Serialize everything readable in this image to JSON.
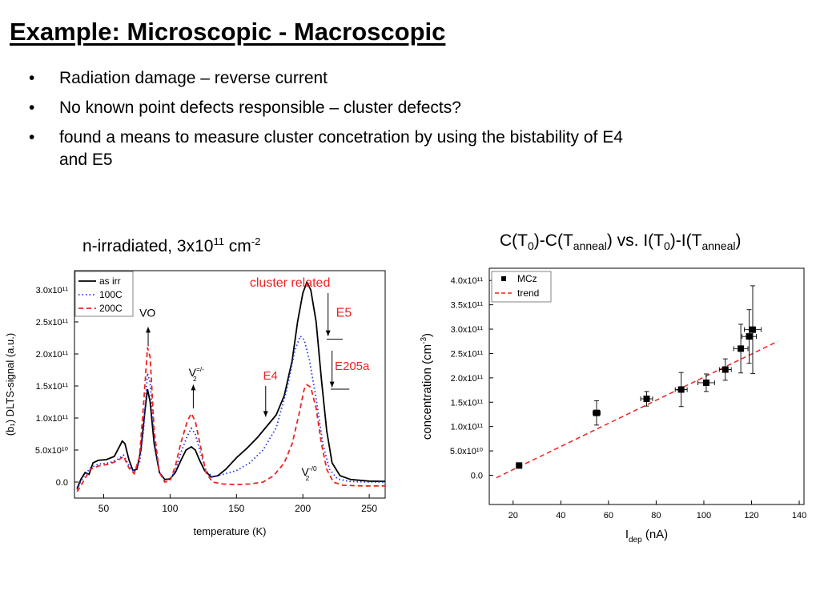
{
  "slide": {
    "title": "Example: Microscopic - Macroscopic",
    "bullet_symbol": "•",
    "bullets": [
      "Radiation damage – reverse current",
      "No known point defects responsible – cluster defects?",
      "found a means to measure cluster concetration by using the bistability of E4 and E5"
    ],
    "left_caption": {
      "text": "n-irradiated, 3x10",
      "sup1": "11",
      "mid": " cm",
      "sup2": "-2"
    },
    "right_caption": {
      "p1": "C(T",
      "s1": "0",
      "p2": ")-C(T",
      "s2": "anneal",
      "p3": ") vs. I(T",
      "s3": "0",
      "p4": ")-I(T",
      "s4": "anneal",
      "p5": ")"
    }
  },
  "chart_data": [
    {
      "type": "line",
      "title": "",
      "xlabel": "temperature (K)",
      "ylabel": "(b₁) DLTS-signal (a.u.)",
      "xlim": [
        28,
        262
      ],
      "ylim": [
        -25000000000.0,
        330000000000.0
      ],
      "xticks": [
        50,
        100,
        150,
        200,
        250
      ],
      "xtick_labels": [
        "50",
        "100",
        "150",
        "200",
        "250"
      ],
      "yticks": [
        0,
        50000000000.0,
        100000000000.0,
        150000000000.0,
        200000000000.0,
        250000000000.0,
        300000000000.0
      ],
      "ytick_labels": [
        "0.0",
        "5.0x10¹⁰",
        "1.0x10¹¹",
        "1.5x10¹¹",
        "2.0x10¹¹",
        "2.5x10¹¹",
        "3.0x10¹¹"
      ],
      "legend_position": "top-left",
      "series": [
        {
          "name": "as irr",
          "color": "#000000",
          "style": "solid",
          "points": [
            [
              30,
              -10000000000.0
            ],
            [
              33,
              5000000000.0
            ],
            [
              36,
              15000000000.0
            ],
            [
              39,
              12000000000.0
            ],
            [
              42,
              30000000000.0
            ],
            [
              46,
              34000000000.0
            ],
            [
              52,
              35000000000.0
            ],
            [
              58,
              40000000000.0
            ],
            [
              62,
              56000000000.0
            ],
            [
              64,
              64000000000.0
            ],
            [
              66,
              60000000000.0
            ],
            [
              69,
              35000000000.0
            ],
            [
              72,
              18000000000.0
            ],
            [
              75,
              20000000000.0
            ],
            [
              78,
              50000000000.0
            ],
            [
              81,
              110000000000.0
            ],
            [
              83,
              145000000000.0
            ],
            [
              85,
              125000000000.0
            ],
            [
              88,
              60000000000.0
            ],
            [
              92,
              15000000000.0
            ],
            [
              96,
              4000000000.0
            ],
            [
              100,
              5000000000.0
            ],
            [
              104,
              15000000000.0
            ],
            [
              108,
              33000000000.0
            ],
            [
              112,
              50000000000.0
            ],
            [
              116,
              55000000000.0
            ],
            [
              119,
              50000000000.0
            ],
            [
              122,
              35000000000.0
            ],
            [
              126,
              18000000000.0
            ],
            [
              131,
              8000000000.0
            ],
            [
              136,
              10000000000.0
            ],
            [
              142,
              20000000000.0
            ],
            [
              150,
              38000000000.0
            ],
            [
              158,
              53000000000.0
            ],
            [
              166,
              70000000000.0
            ],
            [
              174,
              90000000000.0
            ],
            [
              180,
              105000000000.0
            ],
            [
              186,
              135000000000.0
            ],
            [
              192,
              190000000000.0
            ],
            [
              196,
              250000000000.0
            ],
            [
              200,
              295000000000.0
            ],
            [
              203,
              312000000000.0
            ],
            [
              206,
              300000000000.0
            ],
            [
              210,
              250000000000.0
            ],
            [
              214,
              160000000000.0
            ],
            [
              218,
              80000000000.0
            ],
            [
              222,
              30000000000.0
            ],
            [
              228,
              10000000000.0
            ],
            [
              236,
              4000000000.0
            ],
            [
              250,
              1500000000.0
            ],
            [
              262,
              1000000000.0
            ]
          ]
        },
        {
          "name": "100C",
          "color": "#2233ee",
          "style": "dotted",
          "points": [
            [
              30,
              -12000000000.0
            ],
            [
              33,
              2000000000.0
            ],
            [
              36,
              12000000000.0
            ],
            [
              40,
              22000000000.0
            ],
            [
              46,
              28000000000.0
            ],
            [
              54,
              30000000000.0
            ],
            [
              60,
              35000000000.0
            ],
            [
              65,
              42000000000.0
            ],
            [
              69,
              26000000000.0
            ],
            [
              73,
              15000000000.0
            ],
            [
              77,
              30000000000.0
            ],
            [
              80,
              80000000000.0
            ],
            [
              83,
              170000000000.0
            ],
            [
              85,
              155000000000.0
            ],
            [
              88,
              70000000000.0
            ],
            [
              92,
              15000000000.0
            ],
            [
              96,
              3000000000.0
            ],
            [
              100,
              5000000000.0
            ],
            [
              104,
              18000000000.0
            ],
            [
              108,
              45000000000.0
            ],
            [
              113,
              72000000000.0
            ],
            [
              116,
              84000000000.0
            ],
            [
              119,
              75000000000.0
            ],
            [
              123,
              45000000000.0
            ],
            [
              127,
              18000000000.0
            ],
            [
              132,
              8000000000.0
            ],
            [
              140,
              12000000000.0
            ],
            [
              150,
              18000000000.0
            ],
            [
              160,
              30000000000.0
            ],
            [
              170,
              50000000000.0
            ],
            [
              180,
              85000000000.0
            ],
            [
              188,
              145000000000.0
            ],
            [
              194,
              205000000000.0
            ],
            [
              198,
              228000000000.0
            ],
            [
              201,
              222000000000.0
            ],
            [
              205,
              190000000000.0
            ],
            [
              210,
              130000000000.0
            ],
            [
              215,
              60000000000.0
            ],
            [
              220,
              20000000000.0
            ],
            [
              226,
              5000000000.0
            ],
            [
              235,
              1000000000.0
            ],
            [
              250,
              0
            ],
            [
              262,
              0
            ]
          ]
        },
        {
          "name": "200C",
          "color": "#ee2222",
          "style": "dashed",
          "points": [
            [
              30,
              -15000000000.0
            ],
            [
              33,
              -5000000000.0
            ],
            [
              36,
              6000000000.0
            ],
            [
              40,
              20000000000.0
            ],
            [
              46,
              25000000000.0
            ],
            [
              54,
              28000000000.0
            ],
            [
              60,
              33000000000.0
            ],
            [
              65,
              40000000000.0
            ],
            [
              69,
              22000000000.0
            ],
            [
              73,
              13000000000.0
            ],
            [
              77,
              40000000000.0
            ],
            [
              80,
              120000000000.0
            ],
            [
              83,
              210000000000.0
            ],
            [
              85,
              195000000000.0
            ],
            [
              88,
              80000000000.0
            ],
            [
              92,
              15000000000.0
            ],
            [
              96,
              0
            ],
            [
              100,
              2000000000.0
            ],
            [
              104,
              25000000000.0
            ],
            [
              108,
              60000000000.0
            ],
            [
              113,
              95000000000.0
            ],
            [
              116,
              107000000000.0
            ],
            [
              119,
              95000000000.0
            ],
            [
              123,
              55000000000.0
            ],
            [
              127,
              15000000000.0
            ],
            [
              132,
              0
            ],
            [
              140,
              -3000000000.0
            ],
            [
              150,
              -4000000000.0
            ],
            [
              160,
              -3000000000.0
            ],
            [
              170,
              0
            ],
            [
              178,
              10000000000.0
            ],
            [
              186,
              30000000000.0
            ],
            [
              192,
              60000000000.0
            ],
            [
              197,
              105000000000.0
            ],
            [
              201,
              145000000000.0
            ],
            [
              203,
              152000000000.0
            ],
            [
              206,
              148000000000.0
            ],
            [
              210,
              115000000000.0
            ],
            [
              214,
              60000000000.0
            ],
            [
              218,
              20000000000.0
            ],
            [
              223,
              0
            ],
            [
              230,
              -5000000000.0
            ],
            [
              245,
              -6000000000.0
            ],
            [
              262,
              -6000000000.0
            ]
          ]
        }
      ],
      "annotations": [
        {
          "id": "cluster",
          "text": "cluster related",
          "color": "#ee2222",
          "x": 160,
          "y": 305000000000.0
        },
        {
          "id": "vo",
          "text": "VO",
          "color": "#000000",
          "x": 83,
          "y": 258000000000.0
        },
        {
          "id": "v2a",
          "text": "V",
          "sup": "=/-",
          "sub": "2",
          "color": "#000000",
          "x": 114,
          "y": 165000000000.0
        },
        {
          "id": "e4",
          "text": "E4",
          "color": "#ee2222",
          "x": 170,
          "y": 160000000000.0
        },
        {
          "id": "e5",
          "text": "E5",
          "color": "#ee2222",
          "x": 225,
          "y": 258000000000.0
        },
        {
          "id": "e205a",
          "text": "E205a",
          "color": "#ee2222",
          "x": 224,
          "y": 175000000000.0
        },
        {
          "id": "v2b",
          "text": "V",
          "sup": "-/0",
          "sub": "2",
          "color": "#000000",
          "x": 199,
          "y": 10000000000.0
        }
      ]
    },
    {
      "type": "scatter",
      "title": "",
      "xlabel": "I",
      "xlabel_sub": "dep",
      "xlabel_unit": " (nA)",
      "ylabel": "concentration (cm",
      "ylabel_sup": "-3",
      "ylabel_end": ")",
      "xlim": [
        10,
        142
      ],
      "ylim": [
        -60000000000.0,
        425000000000.0
      ],
      "xticks": [
        20,
        40,
        60,
        80,
        100,
        120,
        140
      ],
      "xtick_labels": [
        "20",
        "40",
        "60",
        "80",
        "100",
        "120",
        "140"
      ],
      "yticks": [
        0,
        50000000000.0,
        100000000000.0,
        150000000000.0,
        200000000000.0,
        250000000000.0,
        300000000000.0,
        350000000000.0,
        400000000000.0
      ],
      "ytick_labels": [
        "0.0",
        "5.0x10¹⁰",
        "1.0x10¹¹",
        "1.5x10¹¹",
        "2.0x10¹¹",
        "2.5x10¹¹",
        "3.0x10¹¹",
        "3.5x10¹¹",
        "4.0x10¹¹"
      ],
      "legend_position": "top-left",
      "series": [
        {
          "name": "MCz",
          "color": "#000000",
          "points": [
            {
              "x": 22.5,
              "y": 20000000000.0,
              "xerr": 0.8,
              "yerr": 0
            },
            {
              "x": 55,
              "y": 128000000000.0,
              "xerr": 1.5,
              "yerr": 25000000000.0
            },
            {
              "x": 76,
              "y": 157000000000.0,
              "xerr": 2.5,
              "yerr": 15000000000.0
            },
            {
              "x": 90.5,
              "y": 176000000000.0,
              "xerr": 2.5,
              "yerr": 35000000000.0
            },
            {
              "x": 101,
              "y": 190000000000.0,
              "xerr": 3.5,
              "yerr": 18000000000.0
            },
            {
              "x": 109,
              "y": 217000000000.0,
              "xerr": 2.5,
              "yerr": 22000000000.0
            },
            {
              "x": 115.5,
              "y": 260000000000.0,
              "xerr": 3,
              "yerr": 50000000000.0
            },
            {
              "x": 119,
              "y": 285000000000.0,
              "xerr": 3,
              "yerr": 55000000000.0
            },
            {
              "x": 120.5,
              "y": 299000000000.0,
              "xerr": 3.5,
              "yerr": 90000000000.0
            }
          ]
        },
        {
          "name": "trend",
          "color": "#ee2222",
          "style": "dashed",
          "line": [
            [
              13,
              -5000000000.0
            ],
            [
              131,
              275000000000.0
            ]
          ]
        }
      ]
    }
  ]
}
